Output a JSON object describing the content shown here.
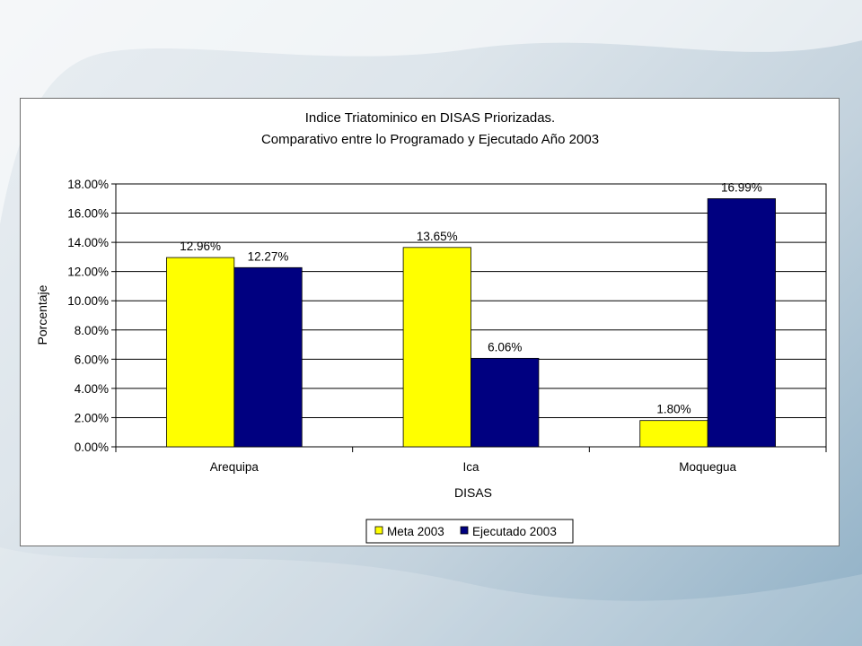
{
  "chart_data": {
    "type": "bar",
    "title": "Indice Triatominico en DISAS Priorizadas.",
    "subtitle": "Comparativo entre lo Programado y Ejecutado Año 2003",
    "xlabel": "DISAS",
    "ylabel": "Porcentaje",
    "categories": [
      "Arequipa",
      "Ica",
      "Moquegua"
    ],
    "series": [
      {
        "name": "Meta 2003",
        "values": [
          12.96,
          13.65,
          1.8
        ],
        "labels": [
          "12.96%",
          "13.65%",
          "1.80%"
        ],
        "color": "#ffff00"
      },
      {
        "name": "Ejecutado 2003",
        "values": [
          12.27,
          6.06,
          16.99
        ],
        "labels": [
          "12.27%",
          "6.06%",
          "16.99%"
        ],
        "color": "#000080"
      }
    ],
    "ylim": [
      0,
      18
    ],
    "yticks": [
      0,
      2,
      4,
      6,
      8,
      10,
      12,
      14,
      16,
      18
    ],
    "ytick_labels": [
      "0.00%",
      "2.00%",
      "4.00%",
      "6.00%",
      "8.00%",
      "10.00%",
      "12.00%",
      "14.00%",
      "16.00%",
      "18.00%"
    ],
    "grid": true,
    "legend_position": "bottom"
  }
}
